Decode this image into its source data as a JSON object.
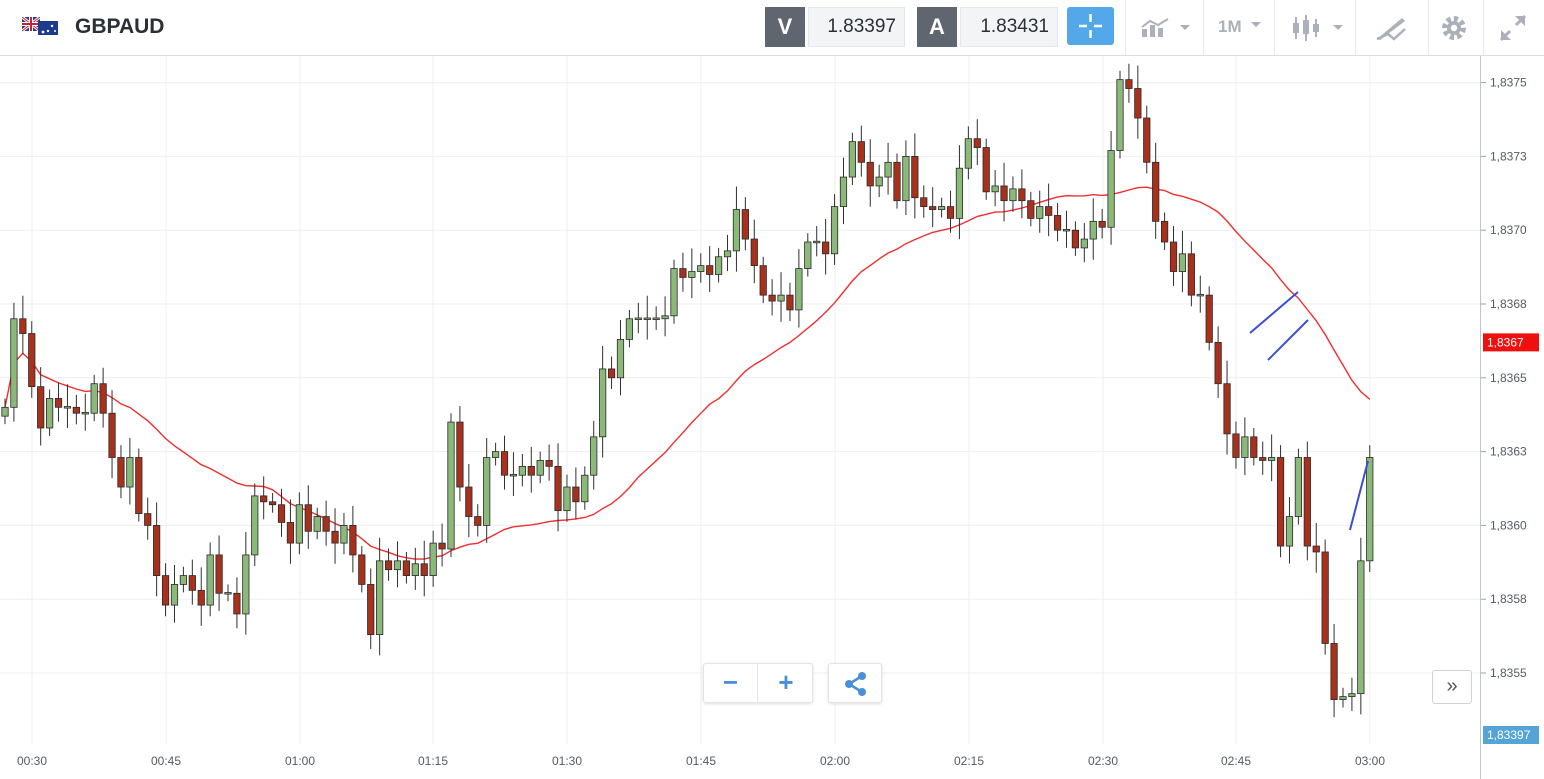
{
  "header": {
    "symbol": "GBPAUD",
    "sell_label": "V",
    "sell_price": "1.83397",
    "buy_label": "A",
    "buy_price": "1.83431",
    "timeframe": "1M",
    "icons": [
      "uk-australia-flag-icon",
      "crosshair-icon",
      "chart-type-icon",
      "candlestick-icon",
      "drawing-tools-icon",
      "gear-icon",
      "fullscreen-icon"
    ],
    "accent_color": "#52a8e8"
  },
  "controls": {
    "zoom_out_label": "−",
    "zoom_in_label": "+",
    "share_icon": "share-icon",
    "scroll_label": "»"
  },
  "chart_data": {
    "type": "candlestick",
    "symbol": "GBPAUD",
    "timeframe": "1M",
    "x_tick_labels": [
      "00:30",
      "00:45",
      "01:00",
      "01:15",
      "01:30",
      "01:45",
      "02:00",
      "02:15",
      "02:30",
      "02:45",
      "03:00"
    ],
    "y_tick_labels": [
      "1,8375",
      "1,8373",
      "1,8370",
      "1,8368",
      "1,8365",
      "1,8363",
      "1,8360",
      "1,8358",
      "1,8355"
    ],
    "ylim": [
      1.83535,
      1.83768
    ],
    "grid": true,
    "up_color": "#8bb97a",
    "down_color": "#a8311d",
    "ma_color": "#ee2f2f",
    "price_tags": [
      {
        "label": "1,8367",
        "value": 1.83667,
        "color": "#ee0f0f"
      },
      {
        "label": "1,83397",
        "value": 1.83397,
        "color": "#55a4d8"
      }
    ],
    "candles_close": [
      1.83645,
      1.83675,
      1.8367,
      1.83652,
      1.83638,
      1.83648,
      1.83645,
      1.83645,
      1.83643,
      1.83643,
      1.83653,
      1.83643,
      1.83628,
      1.83618,
      1.83628,
      1.83609,
      1.83605,
      1.83588,
      1.83578,
      1.83585,
      1.83588,
      1.83583,
      1.83578,
      1.83595,
      1.83582,
      1.83582,
      1.83575,
      1.83595,
      1.83615,
      1.83613,
      1.83612,
      1.83606,
      1.83599,
      1.83612,
      1.83603,
      1.83608,
      1.83603,
      1.83599,
      1.83605,
      1.83595,
      1.83585,
      1.83568,
      1.83593,
      1.8359,
      1.83593,
      1.83588,
      1.83592,
      1.83588,
      1.83599,
      1.83597,
      1.8364,
      1.83618,
      1.83608,
      1.83605,
      1.83628,
      1.8363,
      1.83622,
      1.83622,
      1.83625,
      1.83622,
      1.83627,
      1.83625,
      1.8361,
      1.83618,
      1.83613,
      1.83622,
      1.83635,
      1.83658,
      1.83655,
      1.83668,
      1.83675,
      1.83675,
      1.83675,
      1.83675,
      1.83676,
      1.83692,
      1.83689,
      1.83691,
      1.83693,
      1.8369,
      1.83696,
      1.83698,
      1.83712,
      1.83702,
      1.83693,
      1.83683,
      1.83681,
      1.83683,
      1.83678,
      1.83692,
      1.83701,
      1.83701,
      1.83697,
      1.83713,
      1.83723,
      1.83735,
      1.83728,
      1.8372,
      1.83723,
      1.83728,
      1.83715,
      1.8373,
      1.83716,
      1.83713,
      1.83712,
      1.83713,
      1.83709,
      1.83726,
      1.83736,
      1.83733,
      1.83718,
      1.8372,
      1.83715,
      1.83719,
      1.83715,
      1.83709,
      1.83713,
      1.8371,
      1.83705,
      1.83705,
      1.83699,
      1.83702,
      1.83708,
      1.83706,
      1.83732,
      1.83756,
      1.83753,
      1.83743,
      1.83728,
      1.83708,
      1.83701,
      1.83691,
      1.83697,
      1.83683,
      1.83683,
      1.83667,
      1.83653,
      1.83636,
      1.83628,
      1.83635,
      1.83628,
      1.83627,
      1.83628,
      1.83598,
      1.83608,
      1.83628,
      1.83598,
      1.83596,
      1.83565,
      1.83546,
      1.83547,
      1.83548,
      1.83593,
      1.83628
    ],
    "ma_label": ""
  }
}
